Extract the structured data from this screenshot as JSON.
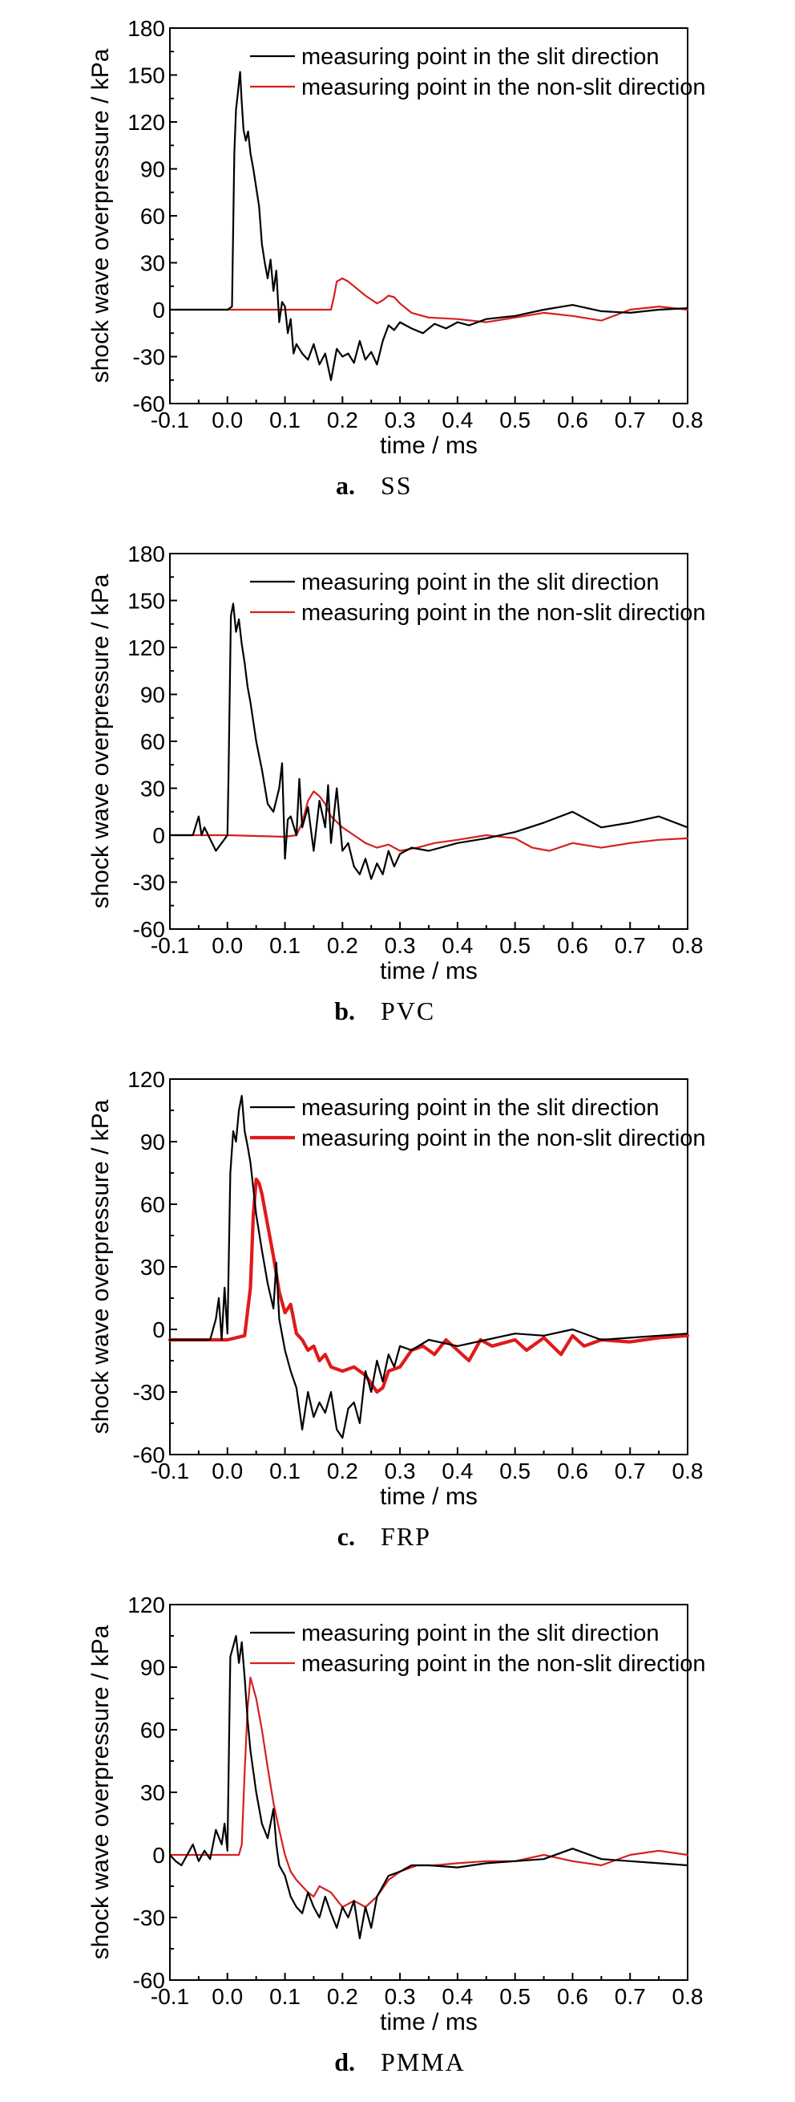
{
  "chart_data": [
    {
      "type": "line",
      "caption_letter": "a.",
      "caption_name": "SS",
      "xlabel": "time / ms",
      "ylabel": "shock wave overpressure / kPa",
      "xlim": [
        -0.1,
        0.8
      ],
      "ylim": [
        -60,
        180
      ],
      "xticks": [
        "-0.1",
        "0.0",
        "0.1",
        "0.2",
        "0.3",
        "0.4",
        "0.5",
        "0.6",
        "0.7",
        "0.8"
      ],
      "yticks": [
        "-60",
        "-30",
        "0",
        "30",
        "60",
        "90",
        "120",
        "150",
        "180"
      ],
      "legend_position": "top-right",
      "series": [
        {
          "name": "measuring point in the slit direction",
          "color": "#000000",
          "width": 2.2,
          "x": [
            -0.1,
            -0.05,
            0.0,
            0.008,
            0.012,
            0.015,
            0.018,
            0.022,
            0.025,
            0.028,
            0.032,
            0.036,
            0.04,
            0.045,
            0.05,
            0.055,
            0.06,
            0.065,
            0.07,
            0.075,
            0.08,
            0.085,
            0.09,
            0.095,
            0.1,
            0.105,
            0.11,
            0.115,
            0.12,
            0.13,
            0.14,
            0.15,
            0.16,
            0.17,
            0.18,
            0.19,
            0.2,
            0.21,
            0.22,
            0.23,
            0.24,
            0.25,
            0.26,
            0.27,
            0.28,
            0.29,
            0.3,
            0.32,
            0.34,
            0.36,
            0.38,
            0.4,
            0.42,
            0.45,
            0.5,
            0.55,
            0.6,
            0.65,
            0.7,
            0.75,
            0.8
          ],
          "y": [
            0,
            0,
            0,
            2,
            100,
            128,
            138,
            152,
            132,
            115,
            108,
            114,
            100,
            90,
            78,
            66,
            42,
            30,
            20,
            32,
            12,
            25,
            -8,
            5,
            2,
            -15,
            -6,
            -28,
            -22,
            -28,
            -32,
            -22,
            -35,
            -28,
            -45,
            -25,
            -30,
            -28,
            -34,
            -20,
            -32,
            -27,
            -35,
            -20,
            -10,
            -13,
            -8,
            -12,
            -15,
            -9,
            -12,
            -8,
            -10,
            -6,
            -4,
            0,
            3,
            -1,
            -2,
            0,
            1
          ]
        },
        {
          "name": "measuring point in the non-slit direction",
          "color": "#d42020",
          "width": 2.2,
          "x": [
            -0.1,
            0.0,
            0.1,
            0.18,
            0.185,
            0.19,
            0.2,
            0.21,
            0.22,
            0.24,
            0.26,
            0.27,
            0.28,
            0.29,
            0.3,
            0.32,
            0.35,
            0.4,
            0.45,
            0.5,
            0.55,
            0.6,
            0.65,
            0.7,
            0.75,
            0.8
          ],
          "y": [
            0,
            0,
            0,
            0,
            8,
            18,
            20,
            18,
            15,
            9,
            4,
            6,
            9,
            8,
            4,
            -2,
            -5,
            -6,
            -8,
            -5,
            -2,
            -4,
            -7,
            0,
            2,
            0
          ]
        }
      ]
    },
    {
      "type": "line",
      "caption_letter": "b.",
      "caption_name": "PVC",
      "xlabel": "time / ms",
      "ylabel": "shock wave overpressure / kPa",
      "xlim": [
        -0.1,
        0.8
      ],
      "ylim": [
        -60,
        180
      ],
      "xticks": [
        "-0.1",
        "0.0",
        "0.1",
        "0.2",
        "0.3",
        "0.4",
        "0.5",
        "0.6",
        "0.7",
        "0.8"
      ],
      "yticks": [
        "-60",
        "-30",
        "0",
        "30",
        "60",
        "90",
        "120",
        "150",
        "180"
      ],
      "legend_position": "top-right",
      "series": [
        {
          "name": "measuring point in the slit direction",
          "color": "#000000",
          "width": 2.2,
          "x": [
            -0.1,
            -0.06,
            -0.05,
            -0.045,
            -0.04,
            -0.02,
            -0.01,
            0.0,
            0.002,
            0.006,
            0.01,
            0.015,
            0.02,
            0.025,
            0.03,
            0.035,
            0.04,
            0.05,
            0.06,
            0.07,
            0.08,
            0.09,
            0.095,
            0.1,
            0.105,
            0.11,
            0.12,
            0.125,
            0.13,
            0.14,
            0.15,
            0.16,
            0.17,
            0.175,
            0.18,
            0.19,
            0.2,
            0.21,
            0.22,
            0.23,
            0.24,
            0.25,
            0.26,
            0.27,
            0.28,
            0.29,
            0.3,
            0.32,
            0.35,
            0.4,
            0.45,
            0.5,
            0.55,
            0.6,
            0.65,
            0.7,
            0.75,
            0.8
          ],
          "y": [
            0,
            0,
            12,
            0,
            5,
            -10,
            -5,
            0,
            40,
            140,
            148,
            130,
            138,
            122,
            110,
            95,
            85,
            60,
            42,
            20,
            15,
            30,
            46,
            -15,
            10,
            12,
            0,
            36,
            5,
            18,
            -10,
            22,
            5,
            32,
            -5,
            30,
            -10,
            -5,
            -20,
            -25,
            -15,
            -28,
            -18,
            -25,
            -10,
            -20,
            -12,
            -8,
            -10,
            -5,
            -2,
            2,
            8,
            15,
            5,
            8,
            12,
            5
          ]
        },
        {
          "name": "measuring point in the non-slit direction",
          "color": "#d42020",
          "width": 2.2,
          "x": [
            -0.1,
            0.0,
            0.1,
            0.12,
            0.13,
            0.14,
            0.15,
            0.16,
            0.17,
            0.18,
            0.2,
            0.22,
            0.24,
            0.26,
            0.28,
            0.3,
            0.33,
            0.36,
            0.4,
            0.45,
            0.5,
            0.53,
            0.56,
            0.6,
            0.65,
            0.7,
            0.75,
            0.8
          ],
          "y": [
            0,
            0,
            -1,
            0,
            8,
            22,
            28,
            25,
            20,
            12,
            5,
            0,
            -5,
            -8,
            -6,
            -10,
            -8,
            -5,
            -3,
            0,
            -2,
            -8,
            -10,
            -5,
            -8,
            -5,
            -3,
            -2
          ]
        }
      ]
    },
    {
      "type": "line",
      "caption_letter": "c.",
      "caption_name": "FRP",
      "xlabel": "time / ms",
      "ylabel": "shock wave overpressure / kPa",
      "xlim": [
        -0.1,
        0.8
      ],
      "ylim": [
        -60,
        120
      ],
      "xticks": [
        "-0.1",
        "0.0",
        "0.1",
        "0.2",
        "0.3",
        "0.4",
        "0.5",
        "0.6",
        "0.7",
        "0.8"
      ],
      "yticks": [
        "-60",
        "-30",
        "0",
        "30",
        "60",
        "90",
        "120"
      ],
      "legend_position": "top-right",
      "series": [
        {
          "name": "measuring point in the slit direction",
          "color": "#000000",
          "width": 2.2,
          "x": [
            -0.1,
            -0.03,
            -0.02,
            -0.015,
            -0.01,
            -0.005,
            0.0,
            0.005,
            0.01,
            0.015,
            0.02,
            0.025,
            0.03,
            0.035,
            0.04,
            0.05,
            0.06,
            0.07,
            0.08,
            0.085,
            0.09,
            0.1,
            0.11,
            0.12,
            0.13,
            0.14,
            0.15,
            0.16,
            0.17,
            0.18,
            0.19,
            0.2,
            0.21,
            0.22,
            0.23,
            0.24,
            0.25,
            0.26,
            0.27,
            0.28,
            0.29,
            0.3,
            0.32,
            0.35,
            0.4,
            0.45,
            0.5,
            0.55,
            0.6,
            0.65,
            0.7,
            0.75,
            0.8
          ],
          "y": [
            -5,
            -5,
            5,
            15,
            -5,
            20,
            -2,
            75,
            95,
            90,
            105,
            112,
            95,
            88,
            80,
            55,
            38,
            22,
            10,
            32,
            5,
            -10,
            -20,
            -28,
            -48,
            -30,
            -42,
            -35,
            -40,
            -30,
            -48,
            -52,
            -38,
            -35,
            -45,
            -20,
            -30,
            -15,
            -25,
            -12,
            -18,
            -8,
            -10,
            -5,
            -8,
            -5,
            -2,
            -3,
            0,
            -5,
            -4,
            -3,
            -2
          ]
        },
        {
          "name": "measuring point in the non-slit direction",
          "color": "#e01a1a",
          "width": 4.2,
          "x": [
            -0.1,
            0.0,
            0.03,
            0.04,
            0.045,
            0.05,
            0.055,
            0.06,
            0.07,
            0.08,
            0.09,
            0.1,
            0.11,
            0.12,
            0.13,
            0.14,
            0.15,
            0.16,
            0.17,
            0.18,
            0.2,
            0.22,
            0.24,
            0.26,
            0.27,
            0.28,
            0.3,
            0.32,
            0.34,
            0.36,
            0.38,
            0.4,
            0.42,
            0.44,
            0.46,
            0.5,
            0.52,
            0.55,
            0.58,
            0.6,
            0.62,
            0.65,
            0.7,
            0.75,
            0.8
          ],
          "y": [
            -5,
            -5,
            -3,
            20,
            55,
            72,
            70,
            65,
            50,
            35,
            18,
            8,
            12,
            -2,
            -5,
            -10,
            -8,
            -15,
            -12,
            -18,
            -20,
            -18,
            -22,
            -30,
            -28,
            -20,
            -18,
            -10,
            -8,
            -12,
            -5,
            -10,
            -15,
            -5,
            -8,
            -5,
            -10,
            -4,
            -12,
            -3,
            -8,
            -5,
            -6,
            -4,
            -3
          ]
        }
      ]
    },
    {
      "type": "line",
      "caption_letter": "d.",
      "caption_name": "PMMA",
      "xlabel": "time / ms",
      "ylabel": "shock wave overpressure / kPa",
      "xlim": [
        -0.1,
        0.8
      ],
      "ylim": [
        -60,
        120
      ],
      "xticks": [
        "-0.1",
        "0.0",
        "0.1",
        "0.2",
        "0.3",
        "0.4",
        "0.5",
        "0.6",
        "0.7",
        "0.8"
      ],
      "yticks": [
        "-60",
        "-30",
        "0",
        "30",
        "60",
        "90",
        "120"
      ],
      "legend_position": "top-right",
      "series": [
        {
          "name": "measuring point in the slit direction",
          "color": "#000000",
          "width": 2.2,
          "x": [
            -0.1,
            -0.09,
            -0.08,
            -0.06,
            -0.05,
            -0.04,
            -0.03,
            -0.02,
            -0.01,
            -0.005,
            0.0,
            0.005,
            0.01,
            0.015,
            0.02,
            0.025,
            0.03,
            0.035,
            0.04,
            0.05,
            0.06,
            0.07,
            0.08,
            0.085,
            0.09,
            0.1,
            0.11,
            0.12,
            0.13,
            0.14,
            0.15,
            0.16,
            0.17,
            0.18,
            0.19,
            0.2,
            0.21,
            0.22,
            0.23,
            0.24,
            0.25,
            0.26,
            0.27,
            0.28,
            0.3,
            0.32,
            0.35,
            0.4,
            0.45,
            0.5,
            0.55,
            0.6,
            0.65,
            0.7,
            0.75,
            0.8
          ],
          "y": [
            0,
            -3,
            -5,
            5,
            -3,
            2,
            -2,
            12,
            5,
            15,
            2,
            95,
            100,
            105,
            92,
            102,
            85,
            65,
            50,
            30,
            15,
            8,
            22,
            5,
            -5,
            -10,
            -20,
            -25,
            -28,
            -18,
            -25,
            -30,
            -20,
            -28,
            -35,
            -25,
            -30,
            -22,
            -40,
            -25,
            -35,
            -20,
            -15,
            -10,
            -8,
            -5,
            -5,
            -6,
            -4,
            -3,
            -2,
            3,
            -2,
            -3,
            -4,
            -5
          ]
        },
        {
          "name": "measuring point in the non-slit direction",
          "color": "#d42020",
          "width": 2.2,
          "x": [
            -0.1,
            0.0,
            0.02,
            0.025,
            0.03,
            0.035,
            0.04,
            0.05,
            0.06,
            0.07,
            0.08,
            0.09,
            0.1,
            0.11,
            0.12,
            0.13,
            0.14,
            0.15,
            0.16,
            0.18,
            0.2,
            0.22,
            0.24,
            0.26,
            0.28,
            0.3,
            0.33,
            0.36,
            0.4,
            0.45,
            0.5,
            0.55,
            0.6,
            0.65,
            0.7,
            0.75,
            0.8
          ],
          "y": [
            0,
            0,
            0,
            5,
            40,
            70,
            85,
            75,
            60,
            42,
            25,
            12,
            0,
            -8,
            -12,
            -15,
            -18,
            -20,
            -15,
            -18,
            -25,
            -22,
            -25,
            -20,
            -12,
            -8,
            -5,
            -5,
            -4,
            -3,
            -3,
            0,
            -3,
            -5,
            0,
            2,
            0
          ]
        }
      ]
    }
  ]
}
